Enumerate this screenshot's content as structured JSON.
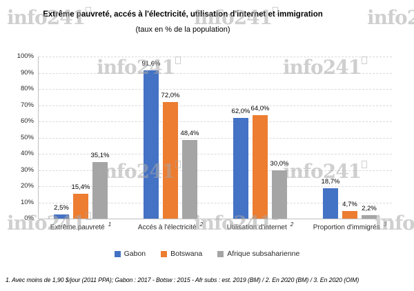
{
  "title": "Extrême pauvreté, accés à l'électricité, utilisation d'internet et immigration",
  "subtitle": "(taux en % de la population)",
  "watermark": {
    "text": "info241",
    "color": "#a8a8a8"
  },
  "chart_data": {
    "type": "bar",
    "categories": [
      "Extrême pauvreté",
      "Accés à l'électricité",
      "Utilisation d'internet",
      "Proportion d'immigrés"
    ],
    "category_superscripts": [
      "1",
      "2",
      "2",
      "3"
    ],
    "series": [
      {
        "name": "Gabon",
        "color": "#4472C4",
        "values": [
          2.5,
          91.6,
          62.0,
          18.7
        ]
      },
      {
        "name": "Botswana",
        "color": "#ED7D31",
        "values": [
          15.4,
          72.0,
          64.0,
          4.7
        ]
      },
      {
        "name": "Afrique subsaharienne",
        "color": "#A5A5A5",
        "values": [
          35.1,
          48.4,
          30.0,
          2.2
        ]
      }
    ],
    "data_labels": [
      [
        "2,5%",
        "91,6%",
        "62,0%",
        "18,7%"
      ],
      [
        "15,4%",
        "72,0%",
        "64,0%",
        "4,7%"
      ],
      [
        "35,1%",
        "48,4%",
        "30,0%",
        "2,2%"
      ]
    ],
    "ylim": [
      0,
      100
    ],
    "y_ticks": [
      "100%",
      "90%",
      "80%",
      "70%",
      "60%",
      "50%",
      "40%",
      "30%",
      "20%",
      "10%",
      "0%"
    ],
    "grid": "horizontal-dashed",
    "legend_position": "bottom"
  },
  "footnote": "1. Avec moins de 1,90 $/jour (2011 PPA); Gabon : 2017 - Botsw : 2015 - Afr subs : est. 2019 (BM) / 2. En 2020 (BM) / 3. En 2020 (OIM)"
}
